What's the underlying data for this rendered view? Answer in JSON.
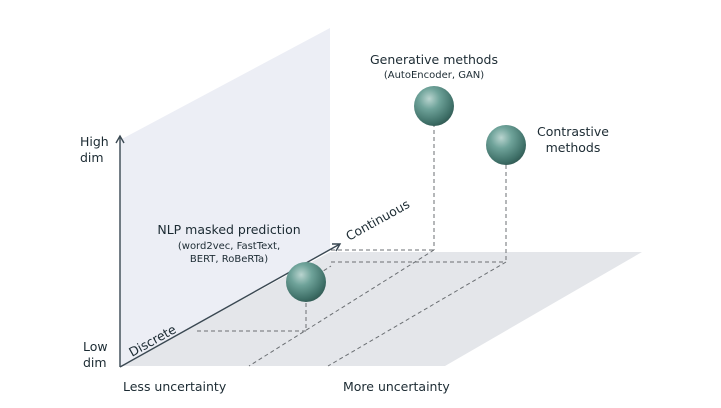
{
  "axes": {
    "vertical_high": [
      "High",
      "dim"
    ],
    "vertical_low": [
      "Low",
      "dim"
    ],
    "horizontal_left": "Less uncertainty",
    "horizontal_right": "More uncertainty",
    "diagonal_start": "Discrete",
    "diagonal_end": "Continuous"
  },
  "methods": {
    "nlp": {
      "title": "NLP masked prediction",
      "detail": [
        "(word2vec, FastText,",
        "BERT, RoBeRTa)"
      ]
    },
    "generative": {
      "title": "Generative methods",
      "detail": [
        "(AutoEncoder, GAN)"
      ]
    },
    "contrastive": {
      "title": [
        "Contrastive",
        "methods"
      ],
      "detail": []
    }
  },
  "colors": {
    "back_wall": "#eceef5",
    "floor": "#e4e6ea",
    "axis": "#3a4852",
    "sphere": "#4e8a80"
  }
}
